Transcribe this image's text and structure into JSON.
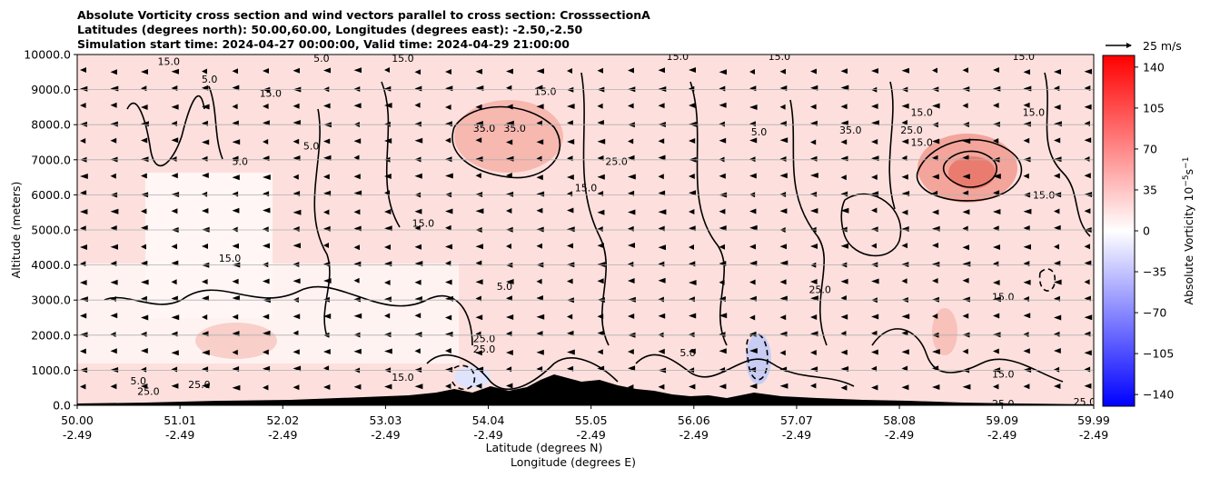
{
  "titles": {
    "line1": "Absolute Vorticity cross section and wind vectors parallel to cross section: CrosssectionA",
    "line2": "Latitudes (degrees north): 50.00,60.00, Longitudes (degrees east): -2.50,-2.50",
    "line3": "Simulation start time: 2024-04-27 00:00:00, Valid time: 2024-04-29 21:00:00"
  },
  "chart_data": {
    "type": "heatmap",
    "ylabel": "Altitude (meters)",
    "xlabel_lat": "Latitude (degrees N)",
    "xlabel_lon": "Longitude (degrees E)",
    "ylim": [
      0,
      10000
    ],
    "y_ticks": [
      "0.0",
      "1000.0",
      "2000.0",
      "3000.0",
      "4000.0",
      "5000.0",
      "6000.0",
      "7000.0",
      "8000.0",
      "9000.0",
      "10000.0"
    ],
    "y_tick_values": [
      0,
      1000,
      2000,
      3000,
      4000,
      5000,
      6000,
      7000,
      8000,
      9000,
      10000
    ],
    "x_ticks_lat": [
      "50.00",
      "51.01",
      "52.02",
      "53.03",
      "54.04",
      "55.05",
      "56.06",
      "57.07",
      "58.08",
      "59.09",
      "59.99"
    ],
    "x_ticks_lon": [
      "-2.49",
      "-2.49",
      "-2.49",
      "-2.49",
      "-2.49",
      "-2.49",
      "-2.49",
      "-2.49",
      "-2.49",
      "-2.49",
      "-2.49"
    ],
    "x_tick_values": [
      50.0,
      51.01,
      52.02,
      53.03,
      54.04,
      55.05,
      56.06,
      57.07,
      58.08,
      59.09,
      59.99
    ],
    "xlim": [
      50.0,
      59.99
    ],
    "grid": "horizontal",
    "colorbar": {
      "label": "Absolute Vorticity 10$^{-5}$s$^{-1}$",
      "range": [
        -150,
        150
      ],
      "tick_labels": [
        "140",
        "105",
        "70",
        "35",
        "0",
        "−35",
        "−70",
        "−105",
        "−140"
      ],
      "tick_values": [
        140,
        105,
        70,
        35,
        0,
        -35,
        -70,
        -105,
        -140
      ],
      "colors": {
        "low": "#0000ff",
        "mid": "#ffffff",
        "high": "#ff0000"
      }
    },
    "quiver_key": {
      "label": "25 m/s",
      "value": 25
    },
    "contour_labels": [
      {
        "text": "15.0",
        "lat": 50.9,
        "alt": 9800
      },
      {
        "text": "5.0",
        "lat": 51.3,
        "alt": 9300
      },
      {
        "text": "15.0",
        "lat": 51.9,
        "alt": 8900
      },
      {
        "text": "5.0",
        "lat": 52.4,
        "alt": 9900
      },
      {
        "text": "15.0",
        "lat": 53.2,
        "alt": 9900
      },
      {
        "text": "15.0",
        "lat": 54.6,
        "alt": 8950
      },
      {
        "text": "15.0",
        "lat": 55.9,
        "alt": 9950
      },
      {
        "text": "15.0",
        "lat": 56.9,
        "alt": 9950
      },
      {
        "text": "15.0",
        "lat": 58.3,
        "alt": 8350
      },
      {
        "text": "15.0",
        "lat": 59.3,
        "alt": 9950
      },
      {
        "text": "15.0",
        "lat": 59.4,
        "alt": 8350
      },
      {
        "text": "35.0",
        "lat": 54.0,
        "alt": 7900
      },
      {
        "text": "35.0",
        "lat": 54.3,
        "alt": 7900
      },
      {
        "text": "25.0",
        "lat": 55.3,
        "alt": 6950
      },
      {
        "text": "5.0",
        "lat": 51.6,
        "alt": 6950
      },
      {
        "text": "5.0",
        "lat": 52.3,
        "alt": 7400
      },
      {
        "text": "5.0",
        "lat": 56.7,
        "alt": 7800
      },
      {
        "text": "35.0",
        "lat": 57.6,
        "alt": 7850
      },
      {
        "text": "25.0",
        "lat": 58.2,
        "alt": 7850
      },
      {
        "text": "15.0",
        "lat": 58.3,
        "alt": 7500
      },
      {
        "text": "15.0",
        "lat": 55.0,
        "alt": 6200
      },
      {
        "text": "15.0",
        "lat": 53.4,
        "alt": 5200
      },
      {
        "text": "15.0",
        "lat": 51.5,
        "alt": 4200
      },
      {
        "text": "15.0",
        "lat": 59.5,
        "alt": 6000
      },
      {
        "text": "15.0",
        "lat": 59.1,
        "alt": 3100
      },
      {
        "text": "5.0",
        "lat": 54.2,
        "alt": 3400
      },
      {
        "text": "25.0",
        "lat": 57.3,
        "alt": 3300
      },
      {
        "text": "25.0",
        "lat": 54.0,
        "alt": 1900
      },
      {
        "text": "25.0",
        "lat": 54.0,
        "alt": 1600
      },
      {
        "text": "5.0",
        "lat": 56.0,
        "alt": 1500
      },
      {
        "text": "5.0",
        "lat": 50.6,
        "alt": 700
      },
      {
        "text": "25.0",
        "lat": 50.7,
        "alt": 400
      },
      {
        "text": "25.0",
        "lat": 51.2,
        "alt": 600
      },
      {
        "text": "15.0",
        "lat": 53.2,
        "alt": 800
      },
      {
        "text": "15.0",
        "lat": 59.1,
        "alt": 900
      },
      {
        "text": "25.0",
        "lat": 59.1,
        "alt": 50
      },
      {
        "text": "25.0",
        "lat": 59.9,
        "alt": 100
      }
    ]
  }
}
